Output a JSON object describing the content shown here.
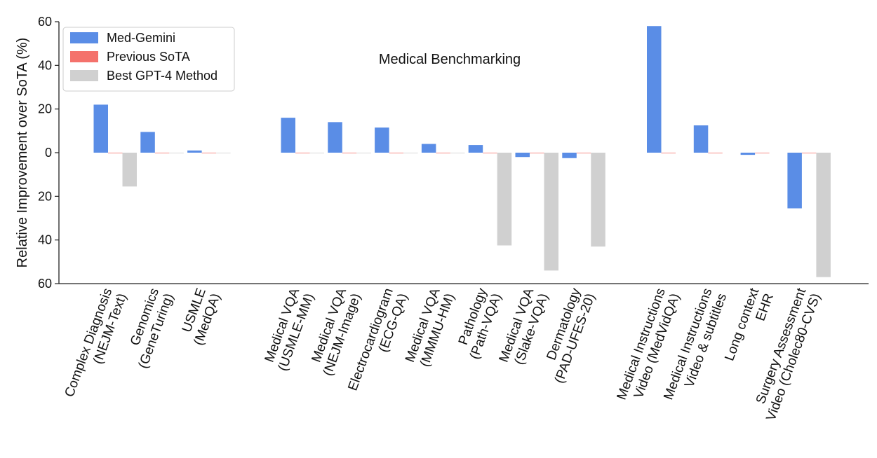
{
  "chart_data": {
    "type": "bar",
    "title": "Medical Benchmarking",
    "ylabel": "Relative Improvement over SoTA (%)",
    "xlabel": "",
    "ylim": [
      -60,
      60
    ],
    "yticks": [
      -60,
      -40,
      -20,
      0,
      20,
      40,
      60
    ],
    "ytick_labels": [
      "60",
      "40",
      "20",
      "0",
      "20",
      "40",
      "60"
    ],
    "grid": false,
    "legend_position": "top-left",
    "groups": [
      [
        {
          "lines": [
            "Complex Diagnosis",
            "(NEJM-Text)"
          ],
          "values": [
            22,
            0,
            -15.5
          ]
        },
        {
          "lines": [
            "Genomics",
            "(GeneTuring)"
          ],
          "values": [
            9.5,
            0,
            0
          ]
        },
        {
          "lines": [
            "USMLE",
            "(MedQA)"
          ],
          "values": [
            1,
            0,
            0
          ]
        }
      ],
      [
        {
          "lines": [
            "Medical VQA",
            "(USMLE-MM)"
          ],
          "values": [
            16,
            0,
            0
          ]
        },
        {
          "lines": [
            "Medical VQA",
            "(NEJM-Image)"
          ],
          "values": [
            14,
            0,
            0
          ]
        },
        {
          "lines": [
            "Electrocardiogram",
            "(ECG-QA)"
          ],
          "values": [
            11.5,
            0,
            0
          ]
        },
        {
          "lines": [
            "Medical VQA",
            "(MMMU-HM)"
          ],
          "values": [
            4,
            0,
            0
          ]
        },
        {
          "lines": [
            "Pathology",
            "(Path-VQA)"
          ],
          "values": [
            3.5,
            0,
            -42.5
          ]
        },
        {
          "lines": [
            "Medical VQA",
            "(Slake-VQA)"
          ],
          "values": [
            -2,
            0,
            -54
          ]
        },
        {
          "lines": [
            "Dermatology",
            "(PAD-UFES-20)"
          ],
          "values": [
            -2.5,
            0,
            -43
          ]
        }
      ],
      [
        {
          "lines": [
            "Medical Instructions",
            "Video (MedVidQA)"
          ],
          "values": [
            58,
            0,
            null
          ]
        },
        {
          "lines": [
            "Medical Instructions",
            "Video & subtitles"
          ],
          "values": [
            12.5,
            0,
            null
          ]
        },
        {
          "lines": [
            "Long context",
            "EHR"
          ],
          "values": [
            -1,
            0,
            null
          ]
        },
        {
          "lines": [
            "Surgery Assessment",
            "Video (Cholec80-CVS)"
          ],
          "values": [
            -25.5,
            0,
            -57
          ]
        }
      ]
    ],
    "series": [
      {
        "name": "Med-Gemini",
        "color": "#5a8de6"
      },
      {
        "name": "Previous SoTA",
        "color": "#f4726c"
      },
      {
        "name": "Best GPT-4 Method",
        "color": "#d0d0d0"
      }
    ]
  }
}
